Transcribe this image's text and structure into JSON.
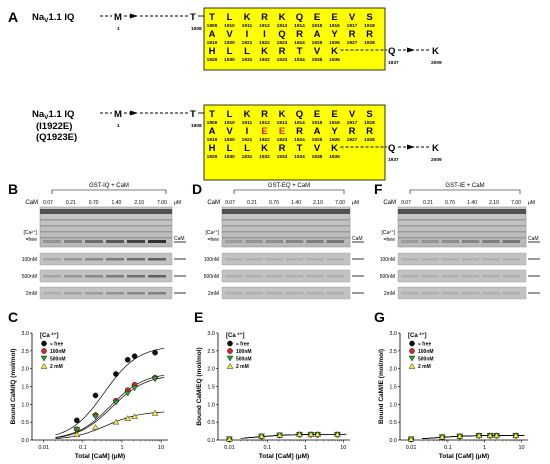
{
  "panel_a": {
    "label": "A",
    "top": {
      "title_main": "Na",
      "title_sub": "V",
      "title_rest": "1.1 IQ",
      "start_res": "M",
      "start_num": "1",
      "pre_res": "T",
      "pre_num": "1908",
      "rows": [
        {
          "letters": [
            "T",
            "L",
            "K",
            "R",
            "K",
            "Q",
            "E",
            "E",
            "V",
            "S"
          ],
          "nums": [
            "1909",
            "1910",
            "1911",
            "1912",
            "1913",
            "1914",
            "1915",
            "1916",
            "1917",
            "1918"
          ]
        },
        {
          "letters": [
            "A",
            "V",
            "I",
            "I",
            "Q",
            "R",
            "A",
            "Y",
            "R",
            "R"
          ],
          "nums": [
            "1919",
            "1920",
            "1921",
            "1922",
            "1923",
            "1924",
            "1925",
            "1926",
            "1927",
            "1928"
          ]
        },
        {
          "letters": [
            "H",
            "L",
            "L",
            "K",
            "R",
            "T",
            "V",
            "K"
          ],
          "nums": [
            "1929",
            "1930",
            "1931",
            "1932",
            "1933",
            "1934",
            "1935",
            "1936"
          ]
        }
      ],
      "tail_res": "Q",
      "tail_num": "1937",
      "end_res": "K",
      "end_num": "2009"
    },
    "bottom": {
      "title_main": "Na",
      "title_sub": "V",
      "title_rest": "1.1 IQ",
      "mut1": "(I1922E)",
      "mut2": "(Q1923E)",
      "start_res": "M",
      "start_num": "1",
      "pre_res": "T",
      "pre_num": "1908",
      "rows": [
        {
          "letters": [
            "T",
            "L",
            "K",
            "R",
            "K",
            "Q",
            "E",
            "E",
            "V",
            "S"
          ],
          "nums": [
            "1909",
            "1910",
            "1911",
            "1912",
            "1913",
            "1914",
            "1915",
            "1916",
            "1917",
            "1918"
          ]
        },
        {
          "letters": [
            "A",
            "V",
            "I",
            "E",
            "E",
            "R",
            "A",
            "Y",
            "R",
            "R"
          ],
          "nums": [
            "1919",
            "1920",
            "1921",
            "1922",
            "1923",
            "1924",
            "1925",
            "1926",
            "1927",
            "1928"
          ],
          "mutant_index": [
            3,
            4
          ]
        },
        {
          "letters": [
            "H",
            "L",
            "L",
            "K",
            "R",
            "T",
            "V",
            "K"
          ],
          "nums": [
            "1929",
            "1930",
            "1931",
            "1932",
            "1933",
            "1934",
            "1935",
            "1936"
          ]
        }
      ],
      "tail_res": "Q",
      "tail_num": "1937",
      "end_res": "K",
      "end_num": "2009"
    }
  },
  "gels": [
    {
      "label": "B",
      "header": "GST-IQ + CaM"
    },
    {
      "label": "D",
      "header": "GST-EQ + CaM"
    },
    {
      "label": "F",
      "header": "GST-IE + CaM"
    }
  ],
  "gel_common": {
    "cam_label": "CaM",
    "concs": [
      "0.07",
      "0.21",
      "0.70",
      "1.40",
      "2.10",
      "7.00"
    ],
    "unit": "μM",
    "ca_label": "[Ca²⁺]",
    "free_label": "=free",
    "rows": [
      "100nM",
      "500nM",
      "2mM"
    ],
    "cam_marker": "CaM"
  },
  "plot_common": {
    "legend_title": "[Ca ²⁺]",
    "legend": [
      "≈ free",
      "100nM",
      "500nM",
      "2 mM"
    ],
    "xlabel": "Total [CaM] (μM)",
    "xticks": [
      "0.01",
      "0.1",
      "1",
      "10"
    ],
    "yticks": [
      "0.0",
      "0.5",
      "1.0",
      "1.5",
      "2.0",
      "2.5",
      "3.0"
    ],
    "colors": {
      "free": "#111111",
      "c100": "#d62728",
      "c500": "#2ca02c",
      "c2mm": "#f0e442"
    }
  },
  "chart_data": [
    {
      "label": "C",
      "type": "scatter",
      "ylabel": "Bound CaM/IQ (mol/mol)",
      "xlabel": "Total [CaM] (μM)",
      "xscale": "log",
      "xlim": [
        0.005,
        15
      ],
      "ylim": [
        0,
        3
      ],
      "series": [
        {
          "name": "≈ free",
          "x": [
            0.07,
            0.21,
            0.7,
            1.4,
            2.1,
            7.0
          ],
          "y": [
            0.55,
            1.25,
            1.85,
            2.25,
            2.35,
            2.45
          ]
        },
        {
          "name": "100nM",
          "x": [
            0.07,
            0.21,
            0.7,
            1.4,
            2.1,
            7.0
          ],
          "y": [
            0.3,
            0.7,
            1.1,
            1.4,
            1.55,
            1.75
          ]
        },
        {
          "name": "500nM",
          "x": [
            0.07,
            0.21,
            0.7,
            1.4,
            2.1,
            7.0
          ],
          "y": [
            0.28,
            0.65,
            1.05,
            1.3,
            1.45,
            1.7
          ]
        },
        {
          "name": "2 mM",
          "x": [
            0.07,
            0.21,
            0.7,
            1.4,
            2.1,
            7.0
          ],
          "y": [
            0.15,
            0.35,
            0.5,
            0.6,
            0.65,
            0.75
          ]
        }
      ]
    },
    {
      "label": "E",
      "type": "scatter",
      "ylabel": "Bound CaM/EQ (mol/mol)",
      "xlabel": "Total [CaM] (μM)",
      "xscale": "log",
      "xlim": [
        0.005,
        15
      ],
      "ylim": [
        0,
        3
      ],
      "series": [
        {
          "name": "≈ free",
          "x": [
            0.01,
            0.07,
            0.21,
            0.7,
            1.4,
            2.1,
            7.0
          ],
          "y": [
            0.02,
            0.1,
            0.13,
            0.15,
            0.15,
            0.15,
            0.15
          ]
        },
        {
          "name": "100nM",
          "x": [
            0.01,
            0.07,
            0.21,
            0.7,
            1.4,
            2.1,
            7.0
          ],
          "y": [
            0.02,
            0.1,
            0.13,
            0.15,
            0.15,
            0.15,
            0.15
          ]
        },
        {
          "name": "500nM",
          "x": [
            0.01,
            0.07,
            0.21,
            0.7,
            1.4,
            2.1,
            7.0
          ],
          "y": [
            0.02,
            0.1,
            0.13,
            0.15,
            0.15,
            0.15,
            0.15
          ]
        },
        {
          "name": "2 mM",
          "x": [
            0.01,
            0.07,
            0.21,
            0.7,
            1.4,
            2.1,
            7.0
          ],
          "y": [
            0.02,
            0.1,
            0.13,
            0.15,
            0.15,
            0.15,
            0.15
          ]
        }
      ]
    },
    {
      "label": "G",
      "type": "scatter",
      "ylabel": "Bound CaM/IE (mol/mol)",
      "xlabel": "Total [CaM] (μM)",
      "xscale": "log",
      "xlim": [
        0.005,
        15
      ],
      "ylim": [
        0,
        3
      ],
      "series": [
        {
          "name": "≈ free",
          "x": [
            0.01,
            0.07,
            0.21,
            0.7,
            1.4,
            2.1,
            7.0
          ],
          "y": [
            0.02,
            0.08,
            0.1,
            0.12,
            0.12,
            0.12,
            0.12
          ]
        },
        {
          "name": "100nM",
          "x": [
            0.01,
            0.07,
            0.21,
            0.7,
            1.4,
            2.1,
            7.0
          ],
          "y": [
            0.02,
            0.08,
            0.1,
            0.12,
            0.12,
            0.12,
            0.12
          ]
        },
        {
          "name": "500nM",
          "x": [
            0.01,
            0.07,
            0.21,
            0.7,
            1.4,
            2.1,
            7.0
          ],
          "y": [
            0.02,
            0.08,
            0.1,
            0.12,
            0.12,
            0.12,
            0.12
          ]
        },
        {
          "name": "2 mM",
          "x": [
            0.01,
            0.07,
            0.21,
            0.7,
            1.4,
            2.1,
            7.0
          ],
          "y": [
            0.02,
            0.08,
            0.1,
            0.12,
            0.12,
            0.12,
            0.12
          ]
        }
      ]
    }
  ]
}
